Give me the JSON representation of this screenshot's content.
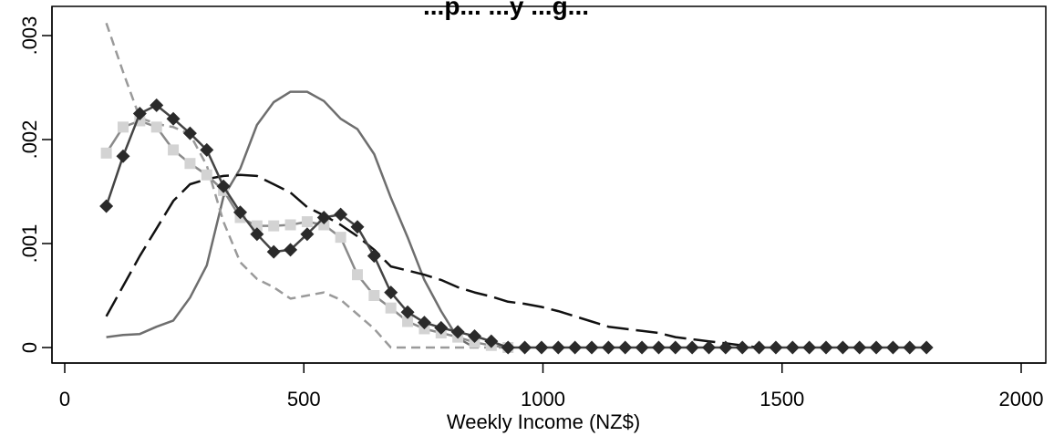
{
  "chart_data": {
    "type": "line",
    "title": "...p... ...y ...g...",
    "xlabel": "Weekly Income (NZ$)",
    "ylabel": "",
    "xlim": [
      0,
      2000
    ],
    "ylim": [
      0,
      0.003
    ],
    "xticks": [
      {
        "value": 0,
        "label": "0"
      },
      {
        "value": 500,
        "label": "500"
      },
      {
        "value": 1000,
        "label": "1000"
      },
      {
        "value": 1500,
        "label": "1500"
      },
      {
        "value": 2000,
        "label": "2000"
      }
    ],
    "yticks": [
      {
        "value": 0,
        "label": "0"
      },
      {
        "value": 0.001,
        "label": ".001"
      },
      {
        "value": 0.002,
        "label": ".002"
      },
      {
        "value": 0.003,
        "label": ".003"
      }
    ],
    "grid": false,
    "legend": "none",
    "series": [
      {
        "style": "solid-gray-line",
        "color": "#6e6e6e",
        "x": [
          87,
          122,
          157,
          192,
          227,
          262,
          297,
          332,
          367,
          402,
          437,
          472,
          507,
          542,
          577,
          612,
          647,
          682,
          717,
          752,
          787,
          822,
          857
        ],
        "y": [
          0.0001,
          0.00012,
          0.00013,
          0.0002,
          0.00026,
          0.00048,
          0.00079,
          0.00145,
          0.00172,
          0.00214,
          0.00236,
          0.00246,
          0.00246,
          0.00237,
          0.0022,
          0.0021,
          0.00186,
          0.00144,
          0.00106,
          0.00065,
          0.00035,
          9e-05,
          0.0
        ]
      },
      {
        "style": "long-dash-black-line",
        "color": "#111111",
        "x": [
          87,
          157,
          227,
          262,
          297,
          332,
          367,
          402,
          437,
          472,
          507,
          542,
          577,
          612,
          647,
          682,
          717,
          752,
          787,
          822,
          857,
          892,
          927,
          962,
          997,
          1032,
          1067,
          1102,
          1137,
          1172,
          1207,
          1242,
          1277,
          1312,
          1347,
          1382,
          1417,
          1452
        ],
        "y": [
          0.0003,
          0.00088,
          0.00141,
          0.00157,
          0.00162,
          0.00165,
          0.00166,
          0.00165,
          0.00157,
          0.00149,
          0.00135,
          0.00127,
          0.00118,
          0.00107,
          0.00094,
          0.00078,
          0.00074,
          0.0007,
          0.00065,
          0.00058,
          0.00053,
          0.00049,
          0.00044,
          0.00042,
          0.00039,
          0.00035,
          0.0003,
          0.00025,
          0.0002,
          0.00018,
          0.00016,
          0.00014,
          0.0001,
          8e-05,
          6e-05,
          4e-05,
          2e-05,
          0.0
        ]
      },
      {
        "style": "short-dash-gray-line",
        "color": "#9a9a9a",
        "x": [
          87,
          122,
          157,
          192,
          227,
          262,
          297,
          332,
          367,
          402,
          437,
          472,
          507,
          542,
          577,
          612,
          647,
          682,
          717,
          752,
          787,
          822,
          857,
          892,
          927
        ],
        "y": [
          0.00312,
          0.00265,
          0.00221,
          0.00215,
          0.00212,
          0.00205,
          0.00175,
          0.00121,
          0.00082,
          0.00066,
          0.00058,
          0.00047,
          0.0005,
          0.00053,
          0.00046,
          0.00032,
          0.00018,
          0.0,
          0.0,
          0.0,
          0.0,
          0.0,
          0.0,
          0.0,
          0.0
        ]
      },
      {
        "style": "light-gray-square-markers",
        "color": "#d3d3d3",
        "line_color": "#8a8a8a",
        "marker": "square",
        "x": [
          87,
          122,
          157,
          192,
          227,
          262,
          297,
          332,
          367,
          402,
          437,
          472,
          507,
          542,
          577,
          612,
          647,
          682,
          717,
          752,
          787,
          822,
          857,
          892,
          927
        ],
        "y": [
          0.00187,
          0.00212,
          0.00218,
          0.00212,
          0.0019,
          0.00177,
          0.00166,
          0.00151,
          0.00125,
          0.00117,
          0.00117,
          0.00118,
          0.00121,
          0.00118,
          0.00106,
          0.0007,
          0.0005,
          0.00038,
          0.00025,
          0.00018,
          0.00014,
          0.0001,
          5e-05,
          2e-05,
          0.0
        ]
      },
      {
        "style": "dark-diamond-markers",
        "color": "#2a2a2a",
        "line_color": "#444444",
        "marker": "diamond",
        "x": [
          87,
          122,
          157,
          192,
          227,
          262,
          297,
          332,
          367,
          402,
          437,
          472,
          507,
          542,
          577,
          612,
          647,
          682,
          717,
          752,
          787,
          822,
          857,
          892,
          927,
          962,
          997,
          1032,
          1067,
          1102,
          1137,
          1172,
          1207,
          1242,
          1277,
          1312,
          1347,
          1382,
          1417,
          1452,
          1487,
          1522,
          1557,
          1592,
          1627,
          1662,
          1697,
          1732,
          1767,
          1802
        ],
        "y": [
          0.00136,
          0.00184,
          0.00225,
          0.00233,
          0.0022,
          0.00206,
          0.0019,
          0.00155,
          0.0013,
          0.00109,
          0.00092,
          0.00094,
          0.00109,
          0.00125,
          0.00128,
          0.00116,
          0.00088,
          0.00053,
          0.00034,
          0.00024,
          0.00019,
          0.00015,
          0.00011,
          6e-05,
          0.0,
          0.0,
          0.0,
          0.0,
          0.0,
          0.0,
          0.0,
          0.0,
          0.0,
          0.0,
          0.0,
          0.0,
          0.0,
          0.0,
          0.0,
          0.0,
          0.0,
          0.0,
          0.0,
          0.0,
          0.0,
          0.0,
          0.0,
          0.0,
          0.0,
          0.0
        ]
      }
    ]
  }
}
